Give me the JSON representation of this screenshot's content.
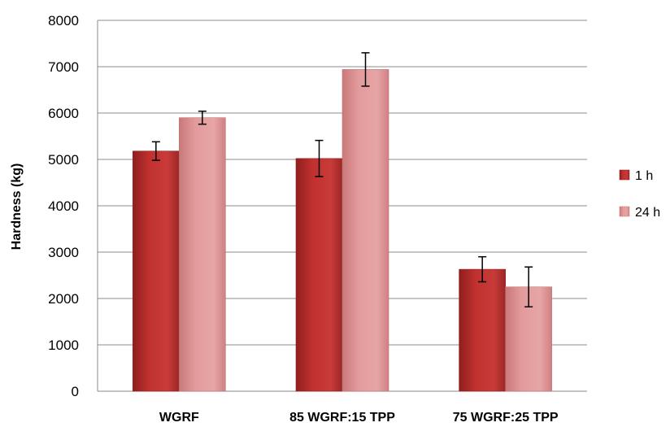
{
  "chart_data": {
    "type": "bar",
    "title": "",
    "xlabel": "",
    "ylabel": "Hardness (kg)",
    "ylim": [
      0,
      8000
    ],
    "yticks": [
      0,
      1000,
      2000,
      3000,
      4000,
      5000,
      6000,
      7000,
      8000
    ],
    "grid": true,
    "legend_position": "right",
    "categories": [
      "WGRF",
      "85 WGRF:15 TPP",
      "75 WGRF:25 TPP"
    ],
    "series": [
      {
        "name": "1 h",
        "color": "#c0312f",
        "values": [
          5180,
          5020,
          2630
        ],
        "error": [
          200,
          390,
          270
        ]
      },
      {
        "name": "24 h",
        "color": "#d98586",
        "values": [
          5900,
          6940,
          2250
        ],
        "error": [
          140,
          360,
          430
        ]
      }
    ]
  }
}
